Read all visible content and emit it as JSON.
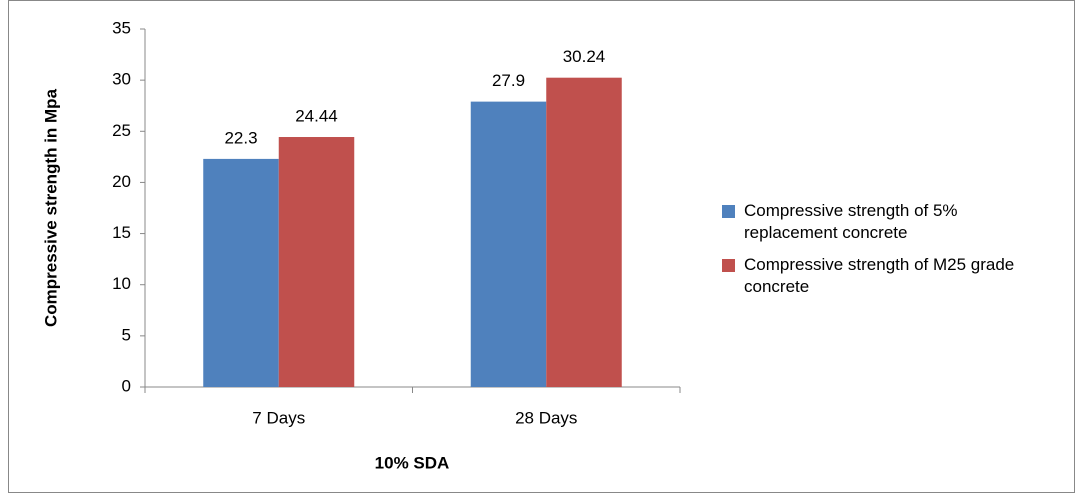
{
  "chart_data": {
    "type": "bar",
    "categories": [
      "7 Days",
      "28 Days"
    ],
    "series": [
      {
        "name": "Compressive strength of 5% replacement concrete",
        "color": "#4f81bd",
        "values": [
          22.3,
          27.9
        ]
      },
      {
        "name": "Compressive strength of M25 grade concrete",
        "color": "#c0504d",
        "values": [
          24.44,
          30.24
        ]
      }
    ],
    "ylabel": "Compressive strength in Mpa",
    "xlabel": "10% SDA",
    "ylim": [
      0,
      35
    ],
    "yticks": [
      0,
      5,
      10,
      15,
      20,
      25,
      30,
      35
    ],
    "grid": false,
    "legend": "right"
  }
}
